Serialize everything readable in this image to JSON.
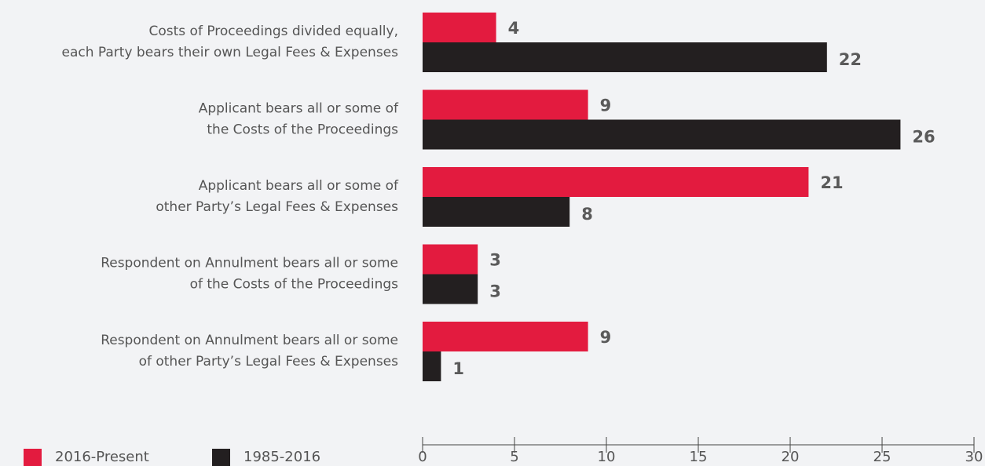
{
  "chart_data": {
    "type": "bar",
    "orientation": "horizontal",
    "categories": [
      [
        "Costs of Proceedings divided equally,",
        "each Party bears their own Legal Fees & Expenses"
      ],
      [
        "Applicant bears all or some of",
        "the Costs of the Proceedings"
      ],
      [
        "Applicant bears all or some of",
        "other Party’s Legal Fees & Expenses"
      ],
      [
        "Respondent on Annulment bears all or some",
        "of the Costs of the Proceedings"
      ],
      [
        "Respondent on Annulment bears all or some",
        "of other Party’s Legal Fees & Expenses"
      ]
    ],
    "series": [
      {
        "name": "2016-Present",
        "color": "#e31b3f",
        "values": [
          4,
          9,
          21,
          3,
          9
        ]
      },
      {
        "name": "1985-2016",
        "color": "#231f20",
        "values": [
          22,
          26,
          8,
          3,
          1
        ]
      }
    ],
    "xlim": [
      0,
      30
    ],
    "xticks": [
      0,
      5,
      10,
      15,
      20,
      25,
      30
    ],
    "legend": "bottom-left"
  }
}
